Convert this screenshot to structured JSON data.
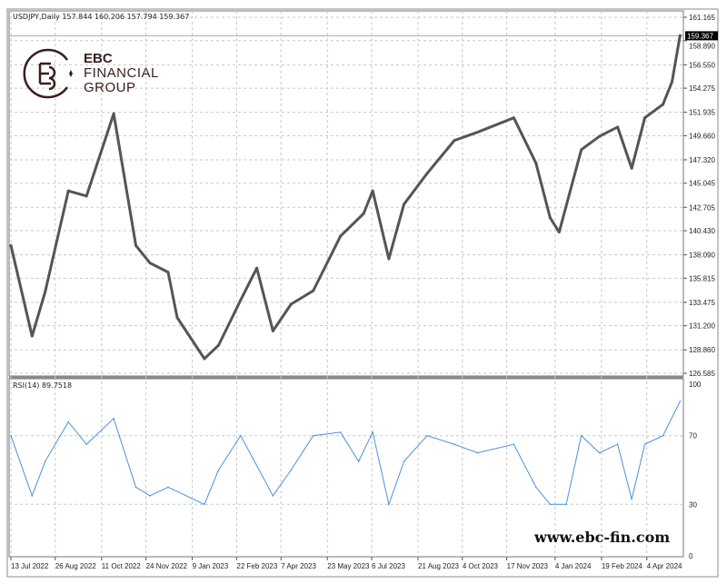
{
  "header": {
    "symbol": "USDJPY,Daily",
    "ohlc": "157.844 160.206 157.794 159.367"
  },
  "rsi_header": {
    "label": "RSI(14)",
    "value": "89.7518"
  },
  "logo": {
    "line1": "EBC",
    "line2": "FINANCIAL",
    "line3": "GROUP"
  },
  "watermark": "www.ebc-fin.com",
  "colors": {
    "price": "#555555",
    "rsi": "#4a90e2",
    "grid": "#c8c8c8",
    "current_price_bg": "#000000"
  },
  "chart_data": [
    {
      "type": "line",
      "title": "USDJPY,Daily",
      "grid": true,
      "ylim": [
        126.585,
        161.165
      ],
      "y_ticks": [
        "161.165",
        "158.890",
        "156.550",
        "154.275",
        "151.935",
        "149.660",
        "147.320",
        "145.045",
        "142.705",
        "140.430",
        "138.090",
        "135.815",
        "133.475",
        "131.200",
        "128.860",
        "126.585"
      ],
      "current_price": "159.367",
      "x_ticks": [
        {
          "label": "13 Jul 2022",
          "date": "2022-07-13"
        },
        {
          "label": "26 Aug 2022",
          "date": "2022-08-26"
        },
        {
          "label": "11 Oct 2022",
          "date": "2022-10-11"
        },
        {
          "label": "24 Nov 2022",
          "date": "2022-11-24"
        },
        {
          "label": "9 Jan 2023",
          "date": "2023-01-09"
        },
        {
          "label": "22 Feb 2023",
          "date": "2023-02-22"
        },
        {
          "label": "7 Apr 2023",
          "date": "2023-04-07"
        },
        {
          "label": "23 May 2023",
          "date": "2023-05-23"
        },
        {
          "label": "6 Jul 2023",
          "date": "2023-07-06"
        },
        {
          "label": "21 Aug 2023",
          "date": "2023-08-21"
        },
        {
          "label": "4 Oct 2023",
          "date": "2023-10-04"
        },
        {
          "label": "17 Nov 2023",
          "date": "2023-11-17"
        },
        {
          "label": "4 Jan 2024",
          "date": "2024-01-04"
        },
        {
          "label": "19 Feb 2024",
          "date": "2024-02-19"
        },
        {
          "label": "4 Apr 2024",
          "date": "2024-04-04"
        }
      ],
      "series": [
        {
          "x": [
            "2022-07-13",
            "2022-08-03",
            "2022-08-16",
            "2022-09-08",
            "2022-09-26",
            "2022-10-23",
            "2022-11-14",
            "2022-11-28",
            "2022-12-16",
            "2022-12-25",
            "2023-01-21",
            "2023-02-04",
            "2023-02-26",
            "2023-03-14",
            "2023-03-30",
            "2023-04-17",
            "2023-05-09",
            "2023-06-05",
            "2023-06-28",
            "2023-07-07",
            "2023-07-23",
            "2023-08-07",
            "2023-08-30",
            "2023-09-26",
            "2023-10-19",
            "2023-11-24",
            "2023-12-16",
            "2023-12-30",
            "2024-01-08",
            "2024-01-30",
            "2024-02-17",
            "2024-03-06",
            "2024-03-20",
            "2024-04-02",
            "2024-04-20",
            "2024-04-29",
            "2024-05-07"
          ],
          "y": [
            139.0,
            130.2,
            134.5,
            144.3,
            143.8,
            151.8,
            139.0,
            137.3,
            136.4,
            132.0,
            128.0,
            129.3,
            133.7,
            136.8,
            130.7,
            133.3,
            134.6,
            139.9,
            142.1,
            144.3,
            137.7,
            143.0,
            146.0,
            149.2,
            150.0,
            151.4,
            147.0,
            141.7,
            140.3,
            148.3,
            149.6,
            150.5,
            146.5,
            151.4,
            152.7,
            154.9,
            159.4
          ]
        }
      ]
    },
    {
      "type": "line",
      "title": "RSI(14)",
      "ylim": [
        0,
        100
      ],
      "y_ticks": [
        "100",
        "70",
        "30",
        "0"
      ],
      "series": [
        {
          "x": [
            "2022-07-13",
            "2022-08-03",
            "2022-08-16",
            "2022-09-08",
            "2022-09-26",
            "2022-10-23",
            "2022-11-14",
            "2022-11-28",
            "2022-12-16",
            "2023-01-21",
            "2023-02-04",
            "2023-02-26",
            "2023-03-30",
            "2023-04-17",
            "2023-05-09",
            "2023-06-05",
            "2023-06-23",
            "2023-07-07",
            "2023-07-23",
            "2023-08-07",
            "2023-08-30",
            "2023-09-26",
            "2023-10-19",
            "2023-11-24",
            "2023-12-16",
            "2023-12-30",
            "2024-01-15",
            "2024-01-30",
            "2024-02-17",
            "2024-03-06",
            "2024-03-20",
            "2024-04-02",
            "2024-04-20",
            "2024-05-07"
          ],
          "y": [
            70,
            35,
            55,
            78,
            65,
            80,
            40,
            35,
            40,
            30,
            50,
            70,
            35,
            50,
            70,
            72,
            55,
            72,
            30,
            55,
            70,
            65,
            60,
            65,
            40,
            30,
            30,
            70,
            60,
            65,
            33,
            65,
            70,
            90
          ]
        }
      ]
    }
  ]
}
